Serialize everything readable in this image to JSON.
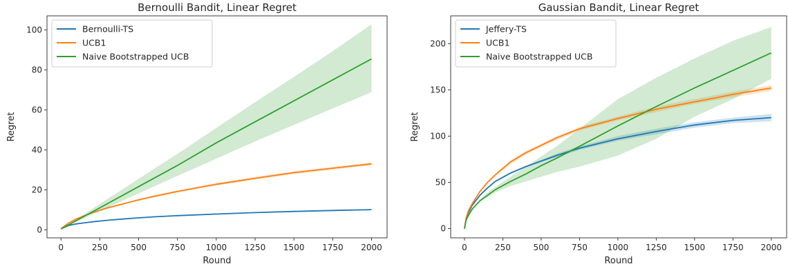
{
  "chart_data": [
    {
      "type": "line",
      "title": "Bernoulli Bandit, Linear Regret",
      "xlabel": "Round",
      "ylabel": "Regret",
      "xlim": [
        -90,
        2100
      ],
      "ylim": [
        -4,
        107
      ],
      "xticks": [
        0,
        250,
        500,
        750,
        1000,
        1250,
        1500,
        1750,
        2000
      ],
      "yticks": [
        0,
        20,
        40,
        60,
        80,
        100
      ],
      "legend_position": "upper-left",
      "series": [
        {
          "name": "Bernoulli-TS",
          "color": "#1f77b4",
          "x": [
            0,
            50,
            100,
            200,
            300,
            400,
            500,
            600,
            750,
            1000,
            1250,
            1500,
            1750,
            2000
          ],
          "y": [
            0.5,
            2.2,
            3.0,
            4.0,
            4.8,
            5.4,
            6.0,
            6.5,
            7.1,
            7.9,
            8.6,
            9.2,
            9.7,
            10.1
          ],
          "band_lower": [
            0.5,
            2.0,
            2.8,
            3.8,
            4.6,
            5.2,
            5.7,
            6.2,
            6.8,
            7.6,
            8.3,
            8.9,
            9.4,
            9.8
          ],
          "band_upper": [
            0.5,
            2.4,
            3.2,
            4.2,
            5.0,
            5.6,
            6.3,
            6.8,
            7.4,
            8.2,
            8.9,
            9.5,
            10.0,
            10.4
          ]
        },
        {
          "name": "UCB1",
          "color": "#ff7f0e",
          "x": [
            0,
            50,
            100,
            200,
            300,
            400,
            500,
            600,
            750,
            1000,
            1250,
            1500,
            1750,
            2000
          ],
          "y": [
            0.5,
            3.5,
            5.5,
            8.5,
            11.0,
            13.0,
            15.0,
            16.8,
            19.2,
            22.8,
            25.8,
            28.6,
            30.8,
            33.0
          ],
          "band_lower": [
            0.5,
            3.3,
            5.2,
            8.2,
            10.6,
            12.6,
            14.6,
            16.3,
            18.7,
            22.2,
            25.1,
            27.9,
            30.1,
            32.3
          ],
          "band_upper": [
            0.5,
            3.7,
            5.8,
            8.8,
            11.4,
            13.4,
            15.4,
            17.3,
            19.7,
            23.4,
            26.5,
            29.3,
            31.5,
            33.7
          ]
        },
        {
          "name": "Naive Bootstrapped UCB",
          "color": "#2ca02c",
          "x": [
            0,
            50,
            100,
            250,
            500,
            750,
            1000,
            1250,
            1500,
            1750,
            2000
          ],
          "y": [
            0.5,
            2.6,
            4.7,
            11.0,
            21.6,
            32.2,
            43.5,
            54.0,
            64.5,
            75.0,
            85.5
          ],
          "band_lower": [
            0.5,
            2.3,
            4.1,
            9.4,
            18.2,
            27.0,
            35.6,
            44.2,
            52.5,
            60.7,
            68.8
          ],
          "band_upper": [
            0.5,
            2.9,
            5.4,
            13.0,
            25.5,
            38.0,
            51.0,
            63.8,
            76.5,
            89.4,
            102.8
          ]
        }
      ]
    },
    {
      "type": "line",
      "title": "Gaussian Bandit, Linear Regret",
      "xlabel": "Round",
      "ylabel": "Regret",
      "xlim": [
        -90,
        2100
      ],
      "ylim": [
        -10,
        230
      ],
      "xticks": [
        0,
        250,
        500,
        750,
        1000,
        1250,
        1500,
        1750,
        2000
      ],
      "yticks": [
        0,
        50,
        100,
        150,
        200
      ],
      "legend_position": "upper-left",
      "series": [
        {
          "name": "Jeffery-TS",
          "color": "#1f77b4",
          "x": [
            0,
            10,
            25,
            50,
            100,
            150,
            200,
            300,
            400,
            500,
            600,
            750,
            1000,
            1250,
            1500,
            1750,
            2000
          ],
          "y": [
            0,
            10,
            17,
            25,
            36,
            44,
            51,
            60,
            67,
            73,
            79,
            87,
            97,
            105,
            112,
            117,
            120
          ],
          "band_lower": [
            0,
            9,
            16,
            24,
            35,
            43,
            50,
            59,
            66,
            72,
            77,
            85,
            95,
            102,
            109,
            114,
            116
          ],
          "band_upper": [
            0,
            11,
            18,
            26,
            37,
            45,
            52,
            61,
            68,
            74,
            81,
            89,
            100,
            108,
            115,
            120,
            124
          ]
        },
        {
          "name": "UCB1",
          "color": "#ff7f0e",
          "x": [
            0,
            10,
            25,
            50,
            100,
            150,
            200,
            300,
            400,
            500,
            600,
            750,
            1000,
            1250,
            1500,
            1750,
            2000
          ],
          "y": [
            0,
            11,
            19,
            27,
            40,
            50,
            58,
            72,
            82,
            90,
            98,
            108,
            119,
            129,
            137,
            145,
            152
          ],
          "band_lower": [
            0,
            10,
            18,
            26,
            39,
            49,
            57,
            70,
            80,
            88,
            96,
            106,
            117,
            126,
            135,
            142,
            149
          ],
          "band_upper": [
            0,
            12,
            20,
            28,
            41,
            51,
            59,
            74,
            84,
            92,
            100,
            110,
            121,
            132,
            140,
            148,
            155
          ]
        },
        {
          "name": "Naive Bootstrapped UCB",
          "color": "#2ca02c",
          "x": [
            0,
            10,
            25,
            50,
            100,
            150,
            200,
            300,
            400,
            500,
            600,
            750,
            1000,
            1250,
            1500,
            1750,
            2000
          ],
          "y": [
            0,
            9,
            14,
            21,
            30,
            36,
            42,
            51,
            59,
            68,
            76,
            89,
            111,
            132,
            152,
            171,
            190
          ],
          "band_lower": [
            0,
            8,
            13,
            20,
            29,
            34,
            39,
            46,
            51,
            56,
            61,
            67,
            79,
            97,
            121,
            140,
            162
          ],
          "band_upper": [
            0,
            10,
            15,
            22,
            31,
            39,
            45,
            56,
            67,
            78,
            89,
            108,
            140,
            163,
            184,
            203,
            218
          ]
        }
      ]
    }
  ]
}
